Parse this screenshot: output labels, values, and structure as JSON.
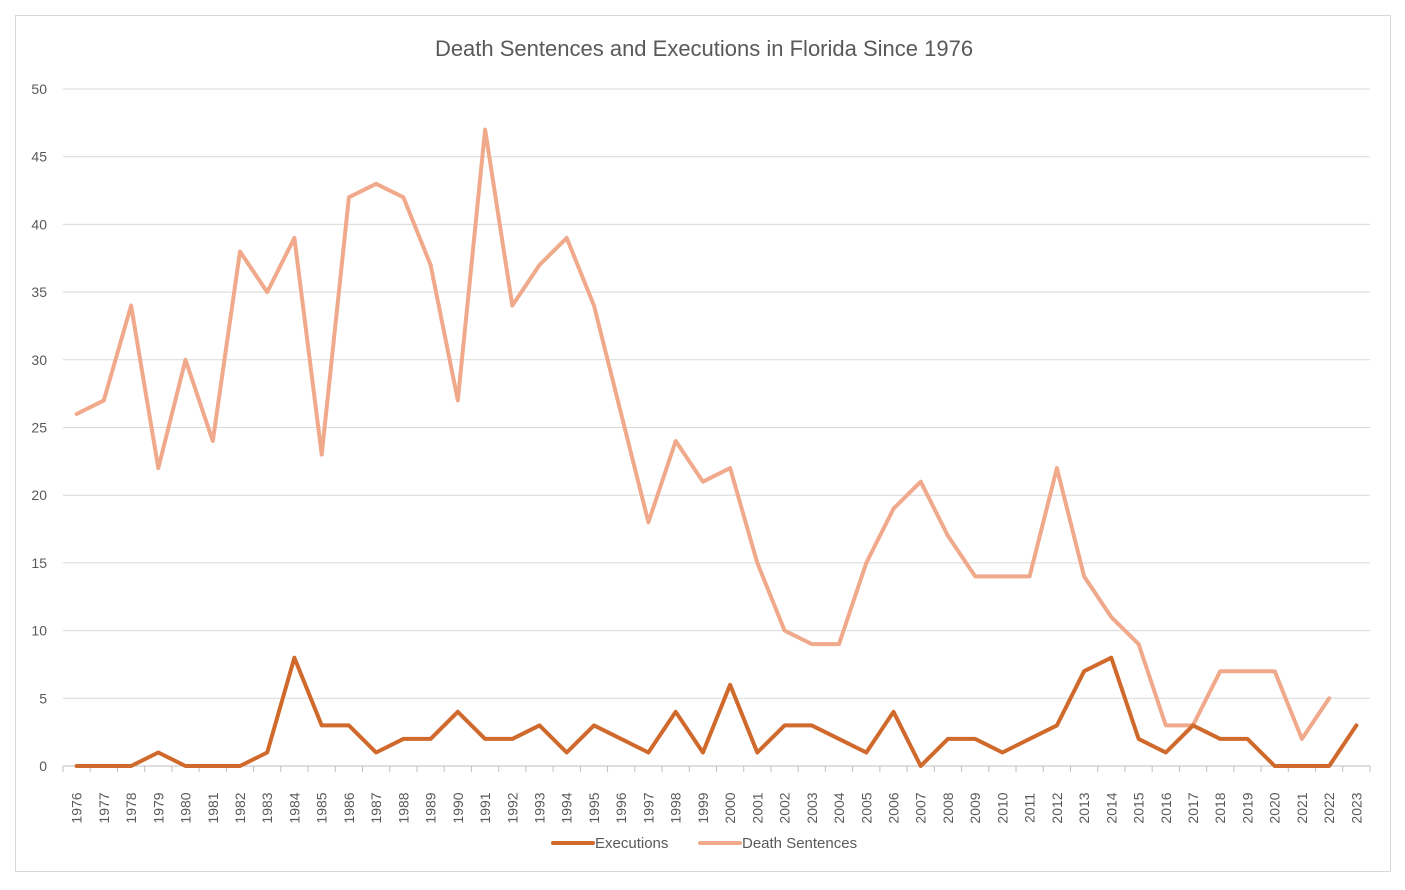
{
  "chart_data": {
    "type": "line",
    "title": "Death Sentences and Executions in Florida Since 1976",
    "xlabel": "",
    "ylabel": "",
    "ylim": [
      0,
      50
    ],
    "yticks": [
      0,
      5,
      10,
      15,
      20,
      25,
      30,
      35,
      40,
      45,
      50
    ],
    "grid": true,
    "legend_position": "bottom",
    "categories": [
      "1976",
      "1977",
      "1978",
      "1979",
      "1980",
      "1981",
      "1982",
      "1983",
      "1984",
      "1985",
      "1986",
      "1987",
      "1988",
      "1989",
      "1990",
      "1991",
      "1992",
      "1993",
      "1994",
      "1995",
      "1996",
      "1997",
      "1998",
      "1999",
      "2000",
      "2001",
      "2002",
      "2003",
      "2004",
      "2005",
      "2006",
      "2007",
      "2008",
      "2009",
      "2010",
      "2011",
      "2012",
      "2013",
      "2014",
      "2015",
      "2016",
      "2017",
      "2018",
      "2019",
      "2020",
      "2021",
      "2022",
      "2023"
    ],
    "series": [
      {
        "name": "Executions",
        "color": "#d0692c",
        "values": [
          0,
          0,
          0,
          1,
          0,
          0,
          0,
          1,
          8,
          3,
          3,
          1,
          2,
          2,
          4,
          2,
          2,
          3,
          1,
          3,
          2,
          1,
          4,
          1,
          6,
          1,
          3,
          3,
          2,
          1,
          4,
          0,
          2,
          2,
          1,
          2,
          3,
          7,
          8,
          2,
          1,
          3,
          2,
          2,
          0,
          0,
          0,
          3
        ]
      },
      {
        "name": "Death Sentences",
        "color": "#f0a98b",
        "values": [
          26,
          27,
          34,
          22,
          30,
          24,
          38,
          35,
          39,
          23,
          42,
          43,
          42,
          37,
          27,
          47,
          34,
          37,
          39,
          34,
          26,
          18,
          24,
          21,
          22,
          15,
          10,
          9,
          9,
          15,
          19,
          21,
          17,
          14,
          14,
          14,
          22,
          14,
          11,
          9,
          3,
          3,
          7,
          7,
          7,
          2,
          5,
          null
        ]
      }
    ]
  }
}
